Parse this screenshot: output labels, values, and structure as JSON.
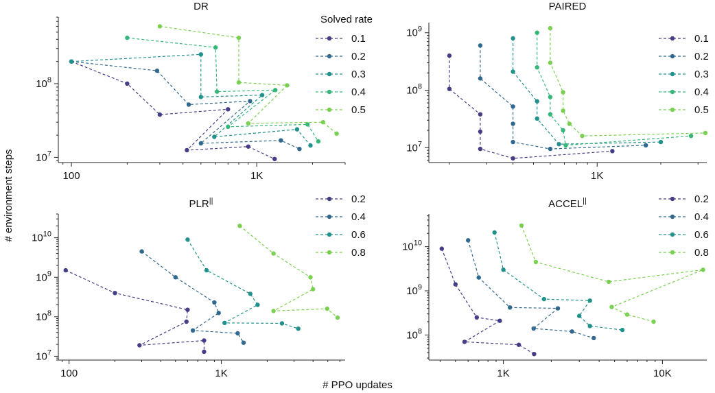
{
  "figure": {
    "xlabel": "# PPO updates",
    "ylabel": "# environment steps"
  },
  "chart_data": [
    {
      "type": "line",
      "title": "DR",
      "title_sup": "",
      "legend_title": "Solved rate",
      "xscale": "log",
      "yscale": "log",
      "xlim": [
        85,
        3000
      ],
      "ylim": [
        8500000,
        800000000
      ],
      "xticks": [
        {
          "v": 100,
          "label": "100"
        },
        {
          "v": 1000,
          "label": "1K"
        }
      ],
      "yticks": [
        {
          "v": 10000000,
          "base": "10",
          "exp": "7"
        },
        {
          "v": 100000000,
          "base": "10",
          "exp": "8"
        }
      ],
      "series": [
        {
          "name": "0.1",
          "color": "#433e85",
          "points": [
            [
              100,
              200000000
            ],
            [
              200,
              100000000
            ],
            [
              300,
              38000000
            ],
            [
              700,
              45000000
            ],
            [
              420,
              12500000
            ],
            [
              900,
              14000000
            ],
            [
              1250,
              9500000
            ]
          ]
        },
        {
          "name": "0.2",
          "color": "#31688e",
          "points": [
            [
              100,
              200000000
            ],
            [
              290,
              150000000
            ],
            [
              430,
              52000000
            ],
            [
              920,
              58000000
            ],
            [
              500,
              15500000
            ],
            [
              1350,
              17000000
            ],
            [
              1700,
              13000000
            ]
          ]
        },
        {
          "name": "0.3",
          "color": "#21918c",
          "points": [
            [
              100,
              200000000
            ],
            [
              500,
              250000000
            ],
            [
              500,
              66000000
            ],
            [
              1070,
              70000000
            ],
            [
              590,
              19000000
            ],
            [
              1650,
              24000000
            ],
            [
              1950,
              14500000
            ]
          ]
        },
        {
          "name": "0.4",
          "color": "#35b779",
          "points": [
            [
              200,
              420000000
            ],
            [
              600,
              310000000
            ],
            [
              610,
              78000000
            ],
            [
              1260,
              82000000
            ],
            [
              700,
              26000000
            ],
            [
              1880,
              28000000
            ],
            [
              2150,
              16500000
            ]
          ]
        },
        {
          "name": "0.5",
          "color": "#7ad151",
          "points": [
            [
              300,
              600000000
            ],
            [
              800,
              420000000
            ],
            [
              800,
              104000000
            ],
            [
              1460,
              95000000
            ],
            [
              900,
              29000000
            ],
            [
              2280,
              30000000
            ],
            [
              2700,
              21000000
            ]
          ]
        }
      ]
    },
    {
      "type": "line",
      "title": "PAIRED",
      "title_sup": "",
      "legend_title": "",
      "xscale": "log",
      "yscale": "log",
      "xlim": [
        160,
        3300
      ],
      "ylim": [
        5500000,
        1500000000
      ],
      "xticks": [
        {
          "v": 1000,
          "label": "1K"
        }
      ],
      "yticks": [
        {
          "v": 10000000,
          "base": "10",
          "exp": "7"
        },
        {
          "v": 100000000,
          "base": "10",
          "exp": "8"
        },
        {
          "v": 1000000000,
          "base": "10",
          "exp": "9"
        }
      ],
      "series": [
        {
          "name": "0.1",
          "color": "#433e85",
          "points": [
            [
              200,
              400000000
            ],
            [
              200,
              105000000
            ],
            [
              280,
              38000000
            ],
            [
              280,
              19000000
            ],
            [
              280,
              9500000
            ],
            [
              400,
              6500000
            ],
            [
              1180,
              8700000
            ]
          ]
        },
        {
          "name": "0.2",
          "color": "#31688e",
          "points": [
            [
              280,
              600000000
            ],
            [
              280,
              160000000
            ],
            [
              400,
              52000000
            ],
            [
              400,
              26000000
            ],
            [
              400,
              12500000
            ],
            [
              600,
              9500000
            ],
            [
              1700,
              11000000
            ]
          ]
        },
        {
          "name": "0.3",
          "color": "#21918c",
          "points": [
            [
              400,
              800000000
            ],
            [
              400,
              210000000
            ],
            [
              520,
              64000000
            ],
            [
              520,
              32000000
            ],
            [
              660,
              11500000
            ],
            [
              2000,
              12500000
            ]
          ]
        },
        {
          "name": "0.4",
          "color": "#35b779",
          "points": [
            [
              520,
              1000000000
            ],
            [
              520,
              250000000
            ],
            [
              600,
              76000000
            ],
            [
              600,
              38000000
            ],
            [
              690,
              20000000
            ],
            [
              710,
              11000000
            ],
            [
              2780,
              16000000
            ]
          ]
        },
        {
          "name": "0.5",
          "color": "#7ad151",
          "points": [
            [
              600,
              1200000000
            ],
            [
              600,
              300000000
            ],
            [
              690,
              92000000
            ],
            [
              690,
              44000000
            ],
            [
              740,
              26000000
            ],
            [
              850,
              16000000
            ],
            [
              3250,
              18000000
            ]
          ]
        }
      ]
    },
    {
      "type": "line",
      "title": "PLR",
      "title_sup": "||",
      "legend_title": "",
      "xscale": "log",
      "yscale": "log",
      "xlim": [
        85,
        6500
      ],
      "ylim": [
        8000000,
        40000000000
      ],
      "xticks": [
        {
          "v": 100,
          "label": "100"
        },
        {
          "v": 1000,
          "label": "1K"
        }
      ],
      "yticks": [
        {
          "v": 10000000,
          "base": "10",
          "exp": "7"
        },
        {
          "v": 100000000,
          "base": "10",
          "exp": "8"
        },
        {
          "v": 1000000000,
          "base": "10",
          "exp": "9"
        },
        {
          "v": 10000000000,
          "base": "10",
          "exp": "10"
        }
      ],
      "series": [
        {
          "name": "0.2",
          "color": "#433e85",
          "points": [
            [
              95,
              1500000000
            ],
            [
              200,
              400000000
            ],
            [
              600,
              150000000
            ],
            [
              590,
              75000000
            ],
            [
              290,
              19000000
            ],
            [
              770,
              25000000
            ],
            [
              770,
              13000000
            ]
          ]
        },
        {
          "name": "0.4",
          "color": "#31688e",
          "points": [
            [
              300,
              4500000000
            ],
            [
              500,
              1000000000
            ],
            [
              900,
              230000000
            ],
            [
              960,
              125000000
            ],
            [
              650,
              45000000
            ],
            [
              1280,
              38000000
            ],
            [
              1400,
              22000000
            ]
          ]
        },
        {
          "name": "0.6",
          "color": "#21918c",
          "points": [
            [
              600,
              9000000000
            ],
            [
              800,
              1500000000
            ],
            [
              1550,
              380000000
            ],
            [
              1730,
              200000000
            ],
            [
              1050,
              70000000
            ],
            [
              2500,
              68000000
            ],
            [
              3200,
              50000000
            ]
          ]
        },
        {
          "name": "0.8",
          "color": "#7ad151",
          "points": [
            [
              1320,
              20000000000
            ],
            [
              2200,
              4000000000
            ],
            [
              3850,
              1000000000
            ],
            [
              4000,
              500000000
            ],
            [
              2200,
              140000000
            ],
            [
              4950,
              160000000
            ],
            [
              5800,
              95000000
            ]
          ]
        }
      ]
    },
    {
      "type": "line",
      "title": "ACCEL",
      "title_sup": "||",
      "legend_title": "",
      "xscale": "log",
      "yscale": "log",
      "xlim": [
        340,
        19000
      ],
      "ylim": [
        27000000,
        55000000000
      ],
      "xticks": [
        {
          "v": 1000,
          "label": "1K"
        },
        {
          "v": 10000,
          "label": "10K"
        }
      ],
      "yticks": [
        {
          "v": 100000000,
          "base": "10",
          "exp": "8"
        },
        {
          "v": 1000000000,
          "base": "10",
          "exp": "9"
        },
        {
          "v": 10000000000,
          "base": "10",
          "exp": "10"
        }
      ],
      "series": [
        {
          "name": "0.2",
          "color": "#433e85",
          "points": [
            [
              410,
              9000000000
            ],
            [
              500,
              1400000000
            ],
            [
              680,
              250000000
            ],
            [
              950,
              210000000
            ],
            [
              570,
              70000000
            ],
            [
              1250,
              60000000
            ],
            [
              1560,
              37000000
            ]
          ]
        },
        {
          "name": "0.4",
          "color": "#31688e",
          "points": [
            [
              600,
              14000000000
            ],
            [
              700,
              2000000000
            ],
            [
              1100,
              420000000
            ],
            [
              2200,
              400000000
            ],
            [
              1550,
              140000000
            ],
            [
              2700,
              120000000
            ],
            [
              3700,
              85000000
            ]
          ]
        },
        {
          "name": "0.6",
          "color": "#21918c",
          "points": [
            [
              880,
              21000000000
            ],
            [
              1000,
              3000000000
            ],
            [
              1800,
              650000000
            ],
            [
              3500,
              600000000
            ],
            [
              3000,
              270000000
            ],
            [
              3500,
              160000000
            ],
            [
              5600,
              130000000
            ]
          ]
        },
        {
          "name": "0.8",
          "color": "#7ad151",
          "points": [
            [
              1300,
              30000000000
            ],
            [
              1600,
              4500000000
            ],
            [
              4600,
              1600000000
            ],
            [
              18000,
              3000000000
            ],
            [
              4800,
              430000000
            ],
            [
              6000,
              290000000
            ],
            [
              8800,
              200000000
            ]
          ]
        }
      ]
    }
  ]
}
